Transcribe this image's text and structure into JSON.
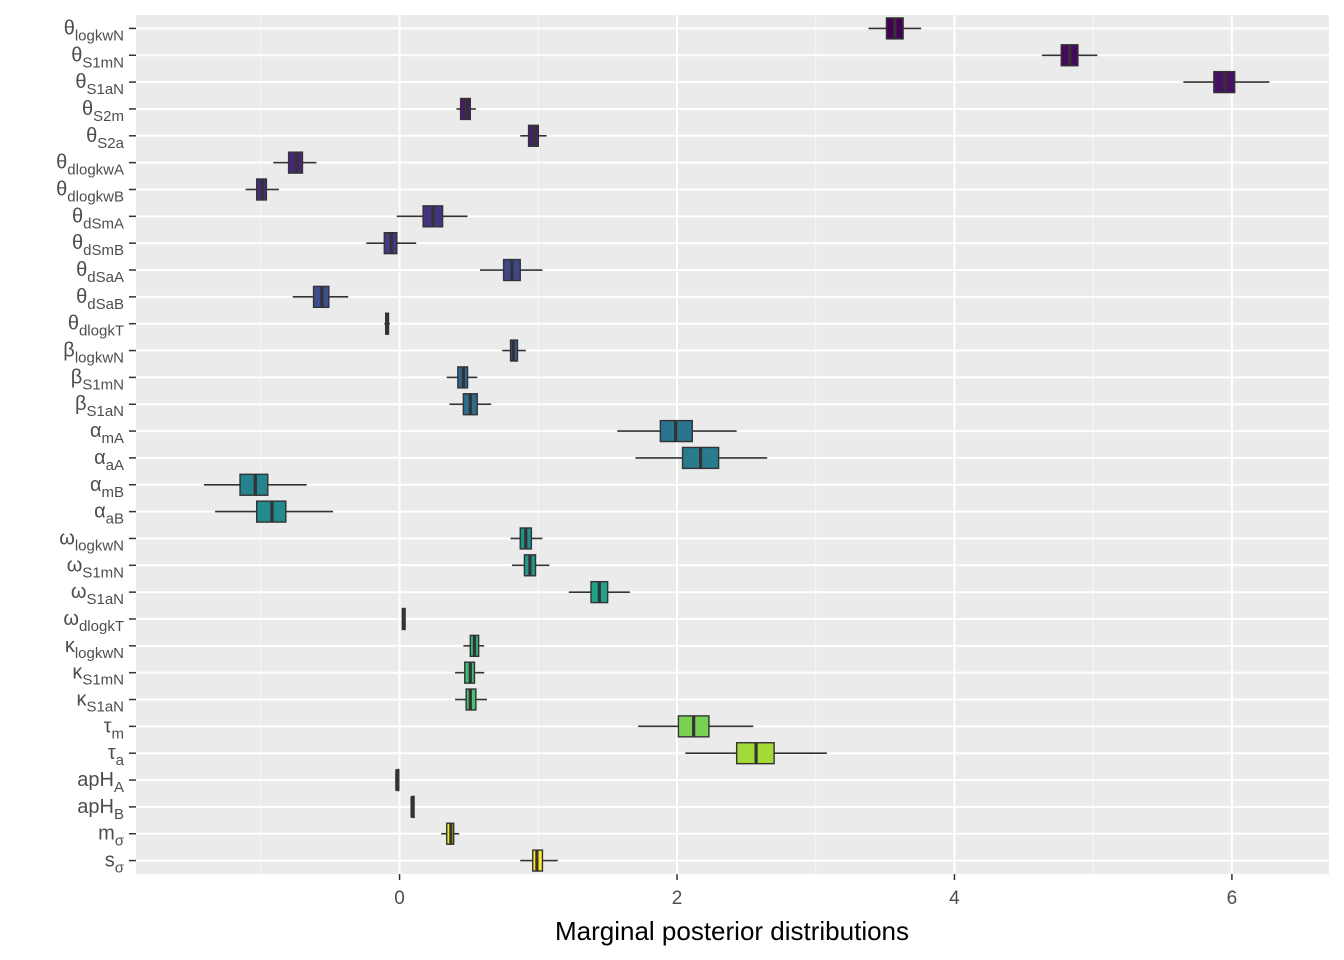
{
  "chart_data": {
    "type": "boxplot",
    "orientation": "horizontal",
    "xlabel": "Marginal posterior distributions",
    "ylabel": "",
    "xlim": [
      -1.9,
      6.7
    ],
    "xticks": [
      0,
      2,
      4,
      6
    ],
    "xtick_labels": [
      "0",
      "2",
      "4",
      "6"
    ],
    "grid": true,
    "legend": "none",
    "colors": {
      "panel_bg": "#ebebeb",
      "grid_major": "#ffffff",
      "box_outline": "#333333",
      "whisker": "#333333"
    },
    "parameters": [
      {
        "base": "θ",
        "sub": "logkwN",
        "min": 3.38,
        "q1": 3.51,
        "median": 3.57,
        "q3": 3.63,
        "max": 3.76,
        "color": "#440154"
      },
      {
        "base": "θ",
        "sub": "S1mN",
        "min": 4.63,
        "q1": 4.77,
        "median": 4.83,
        "q3": 4.89,
        "max": 5.03,
        "color": "#46085c"
      },
      {
        "base": "θ",
        "sub": "S1aN",
        "min": 5.65,
        "q1": 5.87,
        "median": 5.95,
        "q3": 6.02,
        "max": 6.27,
        "color": "#471063"
      },
      {
        "base": "θ",
        "sub": "S2m",
        "min": 0.41,
        "q1": 0.44,
        "median": 0.48,
        "q3": 0.51,
        "max": 0.55,
        "color": "#48186a"
      },
      {
        "base": "θ",
        "sub": "S2a",
        "min": 0.87,
        "q1": 0.93,
        "median": 0.97,
        "q3": 1.0,
        "max": 1.06,
        "color": "#481f70"
      },
      {
        "base": "θ",
        "sub": "dlogkwA",
        "min": -0.91,
        "q1": -0.8,
        "median": -0.74,
        "q3": -0.7,
        "max": -0.6,
        "color": "#472676"
      },
      {
        "base": "θ",
        "sub": "dlogkwB",
        "min": -1.11,
        "q1": -1.03,
        "median": -0.99,
        "q3": -0.96,
        "max": -0.87,
        "color": "#462d7b"
      },
      {
        "base": "θ",
        "sub": "dSmA",
        "min": -0.02,
        "q1": 0.17,
        "median": 0.24,
        "q3": 0.31,
        "max": 0.49,
        "color": "#443480"
      },
      {
        "base": "θ",
        "sub": "dSmB",
        "min": -0.24,
        "q1": -0.11,
        "median": -0.06,
        "q3": -0.02,
        "max": 0.12,
        "color": "#423b84"
      },
      {
        "base": "θ",
        "sub": "dSaA",
        "min": 0.58,
        "q1": 0.75,
        "median": 0.81,
        "q3": 0.87,
        "max": 1.03,
        "color": "#3f4788"
      },
      {
        "base": "θ",
        "sub": "dSaB",
        "min": -0.77,
        "q1": -0.62,
        "median": -0.56,
        "q3": -0.51,
        "max": -0.37,
        "color": "#3c4f8a"
      },
      {
        "base": "θ",
        "sub": "dlogkT",
        "min": -0.11,
        "q1": -0.1,
        "median": -0.09,
        "q3": -0.08,
        "max": -0.07,
        "color": "#38568b"
      },
      {
        "base": "β",
        "sub": "logkwN",
        "min": 0.74,
        "q1": 0.8,
        "median": 0.82,
        "q3": 0.85,
        "max": 0.91,
        "color": "#355e8d"
      },
      {
        "base": "β",
        "sub": "S1mN",
        "min": 0.34,
        "q1": 0.42,
        "median": 0.46,
        "q3": 0.49,
        "max": 0.56,
        "color": "#31668e"
      },
      {
        "base": "β",
        "sub": "S1aN",
        "min": 0.36,
        "q1": 0.46,
        "median": 0.51,
        "q3": 0.56,
        "max": 0.66,
        "color": "#2e6d8e"
      },
      {
        "base": "α",
        "sub": "mA",
        "min": 1.57,
        "q1": 1.88,
        "median": 1.99,
        "q3": 2.11,
        "max": 2.43,
        "color": "#2b748e"
      },
      {
        "base": "α",
        "sub": "aA",
        "min": 1.7,
        "q1": 2.04,
        "median": 2.17,
        "q3": 2.3,
        "max": 2.65,
        "color": "#287c8e"
      },
      {
        "base": "α",
        "sub": "mB",
        "min": -1.41,
        "q1": -1.15,
        "median": -1.04,
        "q3": -0.95,
        "max": -0.67,
        "color": "#25838e"
      },
      {
        "base": "α",
        "sub": "aB",
        "min": -1.33,
        "q1": -1.03,
        "median": -0.92,
        "q3": -0.82,
        "max": -0.48,
        "color": "#218a8d"
      },
      {
        "base": "ω",
        "sub": "logkwN",
        "min": 0.8,
        "q1": 0.87,
        "median": 0.91,
        "q3": 0.95,
        "max": 1.03,
        "color": "#1f928c"
      },
      {
        "base": "ω",
        "sub": "S1mN",
        "min": 0.81,
        "q1": 0.9,
        "median": 0.94,
        "q3": 0.98,
        "max": 1.08,
        "color": "#1e998a"
      },
      {
        "base": "ω",
        "sub": "S1aN",
        "min": 1.22,
        "q1": 1.38,
        "median": 1.44,
        "q3": 1.5,
        "max": 1.66,
        "color": "#20a386"
      },
      {
        "base": "ω",
        "sub": "dlogkT",
        "min": 0.02,
        "q1": 0.02,
        "median": 0.03,
        "q3": 0.04,
        "max": 0.04,
        "color": "#26ad81"
      },
      {
        "base": "κ",
        "sub": "logkwN",
        "min": 0.46,
        "q1": 0.51,
        "median": 0.54,
        "q3": 0.57,
        "max": 0.61,
        "color": "#30b67a"
      },
      {
        "base": "κ",
        "sub": "S1mN",
        "min": 0.4,
        "q1": 0.47,
        "median": 0.51,
        "q3": 0.54,
        "max": 0.61,
        "color": "#3bbb75"
      },
      {
        "base": "κ",
        "sub": "S1aN",
        "min": 0.4,
        "q1": 0.48,
        "median": 0.51,
        "q3": 0.55,
        "max": 0.63,
        "color": "#4ac16d"
      },
      {
        "base": "τ",
        "sub": "m",
        "min": 1.72,
        "q1": 2.01,
        "median": 2.12,
        "q3": 2.23,
        "max": 2.55,
        "color": "#7ad151"
      },
      {
        "base": "τ",
        "sub": "a",
        "min": 2.06,
        "q1": 2.43,
        "median": 2.57,
        "q3": 2.7,
        "max": 3.08,
        "color": "#a2da37"
      },
      {
        "base": "apH",
        "sub": "A",
        "min": -0.03,
        "q1": -0.02,
        "median": -0.02,
        "q3": -0.01,
        "max": -0.01,
        "color": "#c2df23"
      },
      {
        "base": "apH",
        "sub": "B",
        "min": 0.08,
        "q1": 0.09,
        "median": 0.09,
        "q3": 0.1,
        "max": 0.1,
        "color": "#dfe318"
      },
      {
        "base": "m",
        "sub": "σ",
        "min": 0.3,
        "q1": 0.34,
        "median": 0.37,
        "q3": 0.39,
        "max": 0.43,
        "color": "#ece51b"
      },
      {
        "base": "s",
        "sub": "σ",
        "min": 0.87,
        "q1": 0.96,
        "median": 0.99,
        "q3": 1.03,
        "max": 1.14,
        "color": "#fde725"
      }
    ]
  }
}
